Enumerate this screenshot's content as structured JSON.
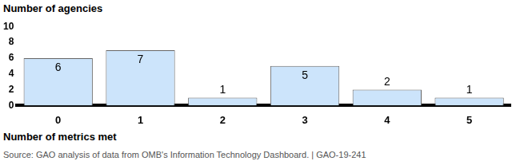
{
  "chart_data": {
    "type": "bar",
    "y_label": "Number of agencies",
    "x_label": "Number of metrics met",
    "source": "Source: GAO analysis of data from OMB's Information Technology Dashboard.  |  GAO-19-241",
    "categories": [
      "0",
      "1",
      "2",
      "3",
      "4",
      "5"
    ],
    "values": [
      6,
      7,
      1,
      5,
      2,
      1
    ],
    "color": "#cce4fb",
    "ylim": [
      0,
      10
    ],
    "yticks": [
      0,
      2,
      4,
      6,
      8,
      10
    ],
    "grid": false,
    "data_labels": true
  }
}
